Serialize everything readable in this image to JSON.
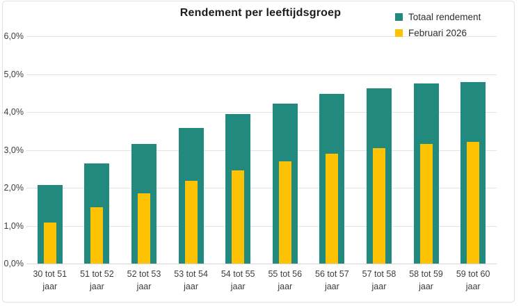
{
  "chart_data": {
    "type": "bar",
    "title": "Rendement per leeftijdsgroep",
    "bar_style": "overlapped",
    "categories": [
      "30 tot 51 jaar",
      "51 tot 52 jaar",
      "52 tot 53 jaar",
      "53 tot 54 jaar",
      "54 tot 55 jaar",
      "55 tot 56 jaar",
      "56 tot 57 jaar",
      "57 tot 58 jaar",
      "58 tot 59 jaar",
      "59 tot 60 jaar"
    ],
    "series": [
      {
        "name": "Totaal rendement",
        "color": "#21897E",
        "values": [
          2.08,
          2.65,
          3.15,
          3.58,
          3.94,
          4.22,
          4.48,
          4.63,
          4.76,
          4.79
        ]
      },
      {
        "name": "Februari 2026",
        "color": "#FCC203",
        "values": [
          1.08,
          1.48,
          1.85,
          2.19,
          2.46,
          2.7,
          2.9,
          3.04,
          3.15,
          3.21
        ]
      }
    ],
    "xlabel": "",
    "ylabel": "",
    "ylim": [
      0,
      6
    ],
    "y_ticks": [
      {
        "label": "6,0%",
        "value": 6
      },
      {
        "label": "5,0%",
        "value": 5
      },
      {
        "label": "4,0%",
        "value": 4
      },
      {
        "label": "3,0%",
        "value": 3
      },
      {
        "label": "2,0%",
        "value": 2
      },
      {
        "label": "1,0%",
        "value": 1
      },
      {
        "label": "0,0%",
        "value": 0
      }
    ],
    "grid": "horizontal",
    "legend_position": "top-right",
    "background": "#ffffff",
    "gridline_color": "#e4e4e4",
    "frame_border_color": "#dcdfe3"
  }
}
